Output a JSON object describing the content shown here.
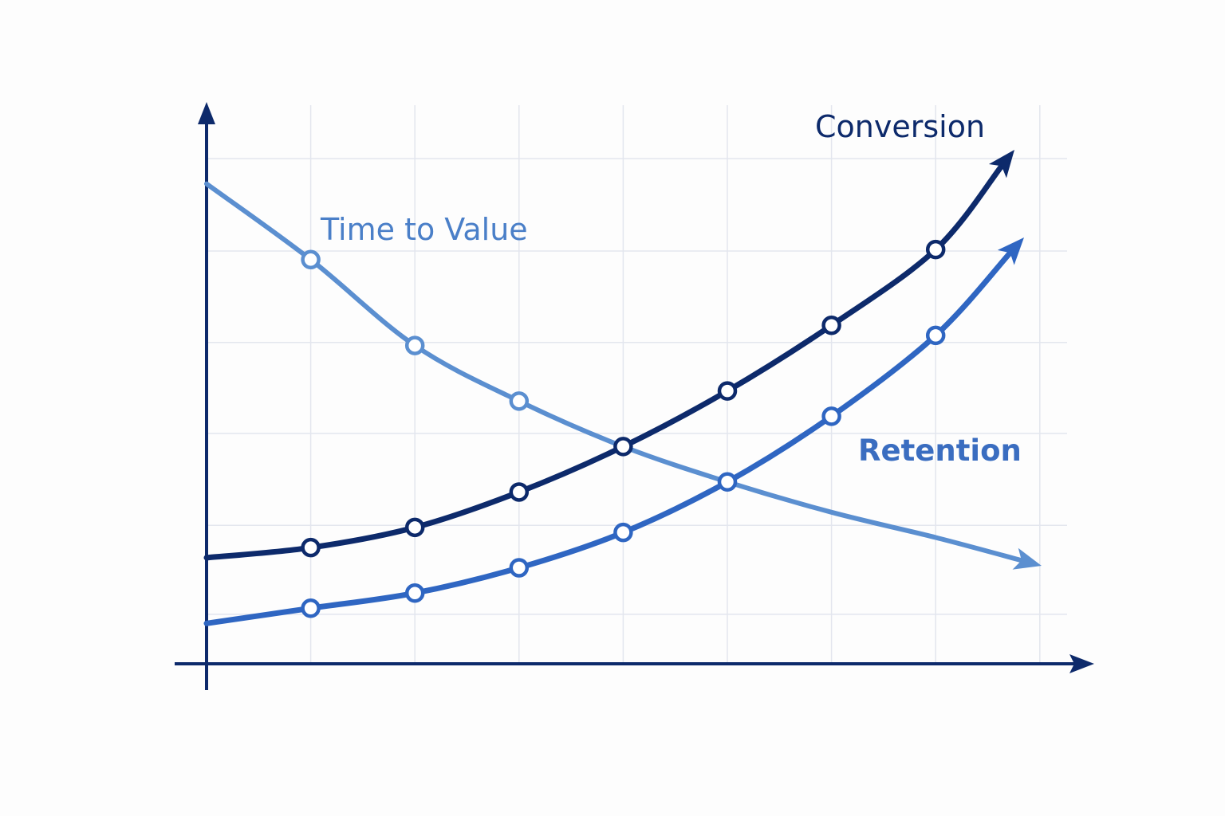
{
  "chart_data": {
    "type": "line",
    "title": "",
    "xlabel": "",
    "ylabel": "",
    "grid": true,
    "legend": "inline labels",
    "x": [
      0,
      1,
      2,
      3,
      4,
      5,
      6,
      7,
      8
    ],
    "xlim": [
      0,
      8
    ],
    "ylim": [
      0,
      100
    ],
    "series": [
      {
        "name": "Conversion",
        "color": "#0d2a6b",
        "values": [
          21,
          23,
          27,
          34,
          43,
          54,
          67,
          82,
          101
        ],
        "markers_at": [
          1,
          2,
          3,
          4,
          5,
          6,
          7
        ],
        "end_arrow": true
      },
      {
        "name": "Retention",
        "color": "#2f66c2",
        "values": [
          8,
          11,
          14,
          19,
          26,
          36,
          49,
          65,
          84
        ],
        "markers_at": [
          1,
          2,
          3,
          4,
          5,
          6,
          7
        ],
        "end_arrow": true
      },
      {
        "name": "Time to Value",
        "color": "#5b8fd0",
        "values": [
          95,
          80,
          63,
          52,
          43,
          36,
          30,
          25,
          20
        ],
        "markers_at": [
          1,
          2,
          3
        ],
        "end_arrow": true
      }
    ]
  },
  "labels": {
    "conversion": "Conversion",
    "retention": "Retention",
    "time_to_value": "Time to Value"
  },
  "colors": {
    "axis": "#0d2a6b",
    "grid": "#e3e6ee",
    "background": "#fdfdfd"
  }
}
